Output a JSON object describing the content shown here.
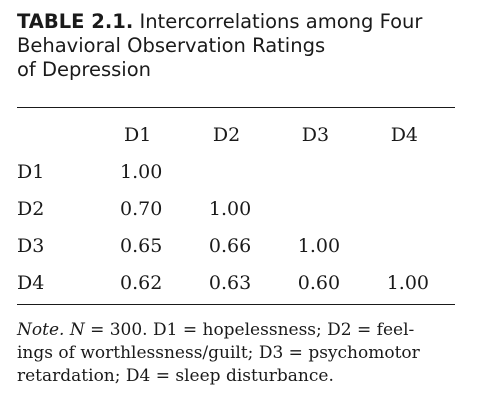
{
  "caption": {
    "number": "TABLE 2.1.",
    "title_line1": "Intercorrelations among Four",
    "title_line2": "Behavioral Observation Ratings",
    "title_line3": "of Depression"
  },
  "table": {
    "column_headers": [
      "D1",
      "D2",
      "D3",
      "D4"
    ],
    "rows": [
      {
        "label": "D1",
        "values": [
          "1.00",
          "",
          "",
          ""
        ]
      },
      {
        "label": "D2",
        "values": [
          "0.70",
          "1.00",
          "",
          ""
        ]
      },
      {
        "label": "D3",
        "values": [
          "0.65",
          "0.66",
          "1.00",
          ""
        ]
      },
      {
        "label": "D4",
        "values": [
          "0.62",
          "0.63",
          "0.60",
          "1.00"
        ]
      }
    ]
  },
  "note": {
    "label": "Note.",
    "n_symbol": "N",
    "line1_rest": " = 300. D1 = hopelessness; D2 = feel-",
    "line2": "ings of worthlessness/guilt; D3 = psychomotor",
    "line3": "retardation; D4 = sleep disturbance."
  }
}
